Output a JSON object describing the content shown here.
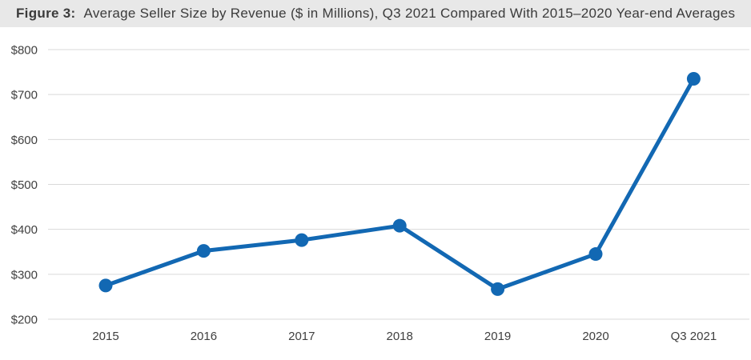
{
  "header": {
    "figure_label": "Figure 3:",
    "title": "Average Seller Size by Revenue ($ in Millions), Q3 2021 Compared With 2015–2020 Year-end Averages"
  },
  "chart_data": {
    "type": "line",
    "categories": [
      "2015",
      "2016",
      "2017",
      "2018",
      "2019",
      "2020",
      "Q3 2021"
    ],
    "values": [
      275,
      352,
      376,
      408,
      267,
      345,
      735
    ],
    "title": "Average Seller Size by Revenue ($ in Millions), Q3 2021 Compared With 2015–2020 Year-end Averages",
    "xlabel": "",
    "ylabel": "",
    "ylim": [
      200,
      800
    ],
    "ytick_step": 100,
    "ytick_prefix": "$",
    "grid": "horizontal",
    "legend": "none",
    "line_color": "#1268b3",
    "marker_color": "#1268b3",
    "gridline_color": "#d9d9d9",
    "axis_label_color": "#404040"
  }
}
